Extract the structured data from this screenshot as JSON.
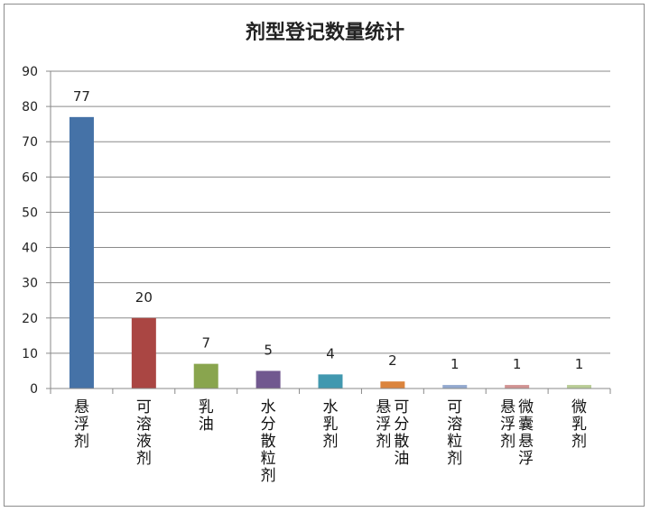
{
  "chart_data": {
    "type": "bar",
    "title": "剂型登记数量统计",
    "categories": [
      "悬浮剂",
      "可溶液剂",
      "乳油",
      "水分散粒剂",
      "水乳剂",
      "可分散油悬浮剂",
      "可溶粒剂",
      "微囊悬浮剂",
      "微乳剂"
    ],
    "category_lines": [
      [
        "悬浮剂"
      ],
      [
        "可溶液剂"
      ],
      [
        "乳油"
      ],
      [
        "水分散粒剂"
      ],
      [
        "水乳剂"
      ],
      [
        "悬浮剂",
        "可分散油"
      ],
      [
        "可溶粒剂"
      ],
      [
        "悬浮剂",
        "微囊悬浮"
      ],
      [
        "微乳剂"
      ]
    ],
    "values": [
      77,
      20,
      7,
      5,
      4,
      2,
      1,
      1,
      1
    ],
    "colors": [
      "#4572a7",
      "#aa4643",
      "#89a54e",
      "#71588f",
      "#4198af",
      "#db843d",
      "#93a9cf",
      "#d19392",
      "#b9cd96"
    ],
    "ylim": [
      0,
      90
    ],
    "yticks": [
      0,
      10,
      20,
      30,
      40,
      50,
      60,
      70,
      80,
      90
    ],
    "grid": true,
    "legend": "none"
  }
}
